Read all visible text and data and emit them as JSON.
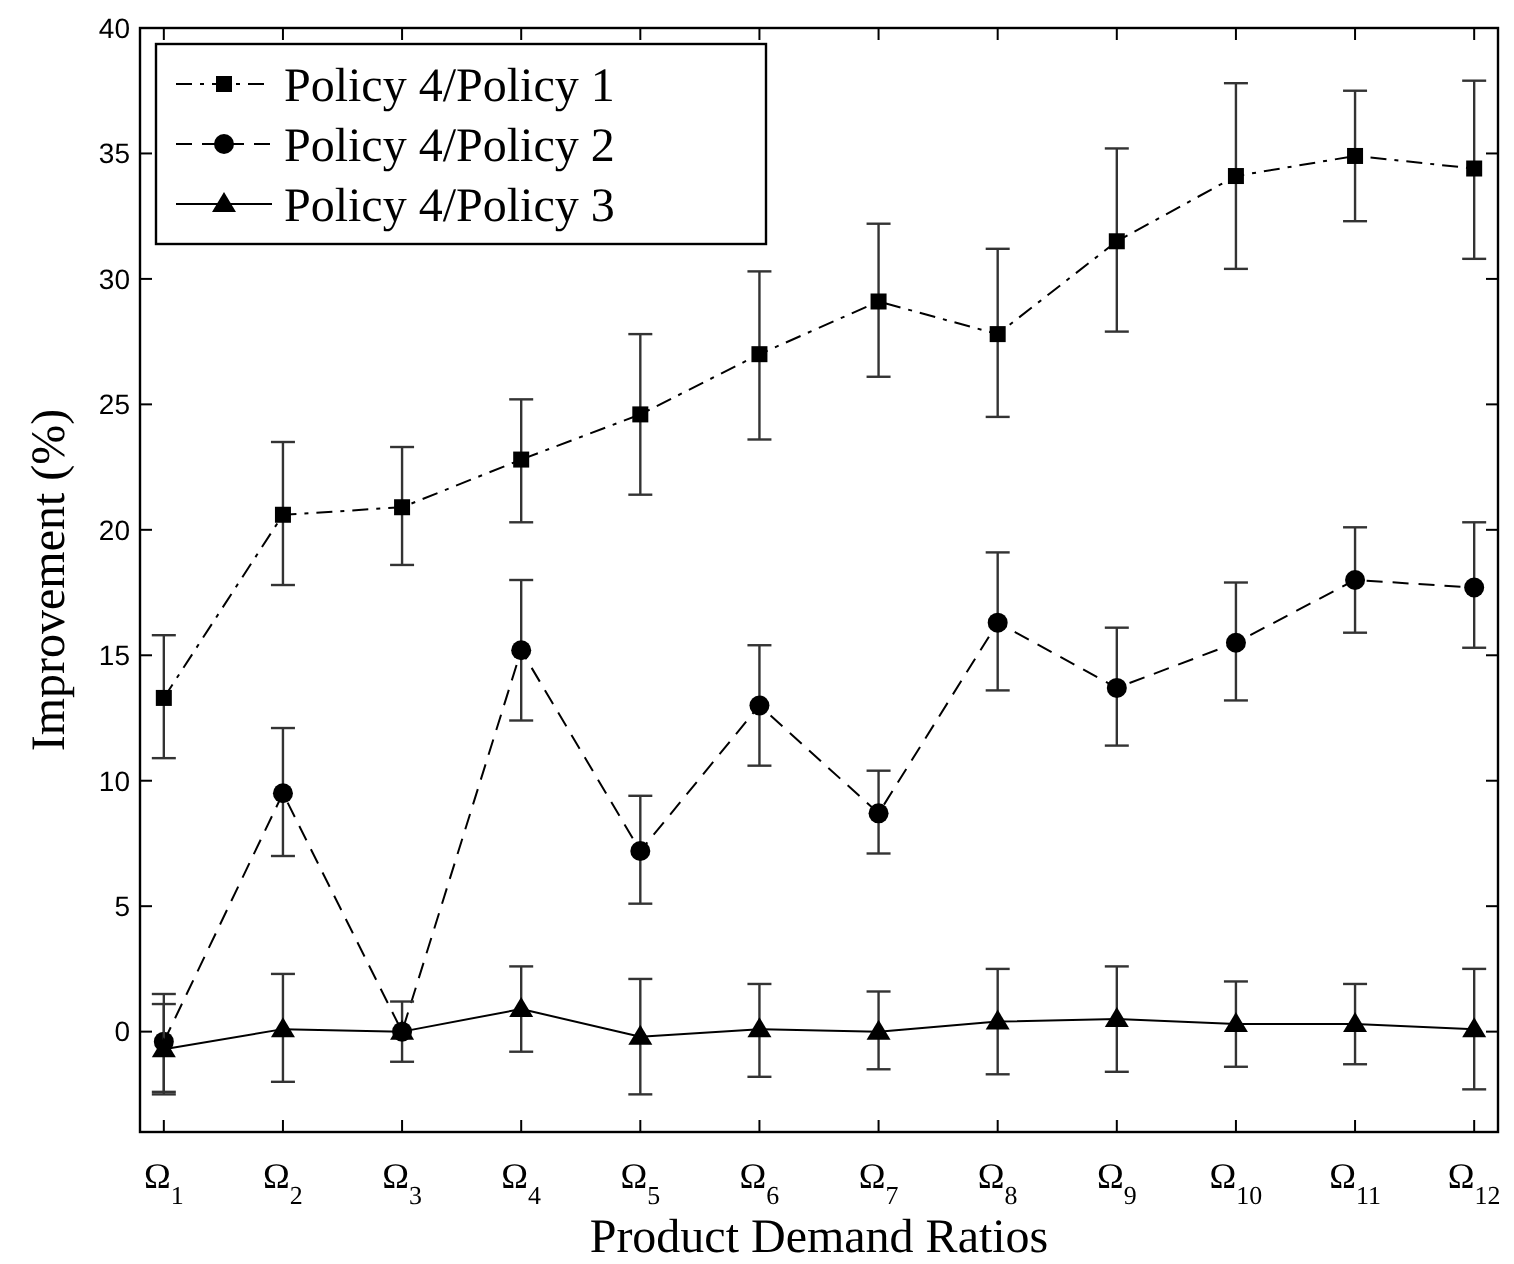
{
  "chart_data": {
    "type": "line",
    "xlabel": "Product Demand Ratios",
    "ylabel": "Improvement (%)",
    "categories": [
      "Ω$_{1}$",
      "Ω$_{2}$",
      "Ω$_{3}$",
      "Ω$_{4}$",
      "Ω$_{5}$",
      "Ω$_{6}$",
      "Ω$_{7}$",
      "Ω$_{8}$",
      "Ω$_{9}$",
      "Ω$_{10}$",
      "Ω$_{11}$",
      "Ω$_{12}$"
    ],
    "ylim": [
      -4,
      40
    ],
    "yticks": [
      0,
      5,
      10,
      15,
      20,
      25,
      30,
      35,
      40
    ],
    "grid": false,
    "legend": "top left",
    "series": [
      {
        "name": "Policy 4/Policy 1",
        "color": "#000000",
        "marker": "square",
        "line_style": "dashdot",
        "values": [
          13.3,
          20.6,
          20.9,
          22.8,
          24.6,
          27.0,
          29.1,
          27.8,
          31.5,
          34.1,
          34.9,
          34.4
        ],
        "errors": [
          [
            10.9,
            15.8
          ],
          [
            17.8,
            23.5
          ],
          [
            18.6,
            23.3
          ],
          [
            20.3,
            25.2
          ],
          [
            21.4,
            27.8
          ],
          [
            23.6,
            30.3
          ],
          [
            26.1,
            32.2
          ],
          [
            24.5,
            31.2
          ],
          [
            27.9,
            35.2
          ],
          [
            30.4,
            37.8
          ],
          [
            32.3,
            37.5
          ],
          [
            30.8,
            37.9
          ]
        ]
      },
      {
        "name": "Policy 4/Policy 2",
        "color": "#000000",
        "marker": "circle",
        "line_style": "dashed",
        "values": [
          -0.4,
          9.5,
          0.0,
          15.2,
          7.2,
          13.0,
          8.7,
          16.3,
          13.7,
          15.5,
          18.0,
          17.7
        ],
        "errors": [
          [
            -2.5,
            1.5
          ],
          [
            7.0,
            12.1
          ],
          [
            -1.2,
            1.2
          ],
          [
            12.4,
            18.0
          ],
          [
            5.1,
            9.4
          ],
          [
            10.6,
            15.4
          ],
          [
            7.1,
            10.4
          ],
          [
            13.6,
            19.1
          ],
          [
            11.4,
            16.1
          ],
          [
            13.2,
            17.9
          ],
          [
            15.9,
            20.1
          ],
          [
            15.3,
            20.3
          ]
        ]
      },
      {
        "name": "Policy 4/Policy 3",
        "color": "#000000",
        "marker": "triangle",
        "line_style": "solid",
        "values": [
          -0.7,
          0.1,
          0.0,
          0.9,
          -0.2,
          0.1,
          0.0,
          0.4,
          0.5,
          0.3,
          0.3,
          0.1
        ],
        "errors": [
          [
            -2.4,
            1.1
          ],
          [
            -2.0,
            2.3
          ],
          null,
          [
            -0.8,
            2.6
          ],
          [
            -2.5,
            2.1
          ],
          [
            -1.8,
            1.9
          ],
          [
            -1.5,
            1.6
          ],
          [
            -1.7,
            2.5
          ],
          [
            -1.6,
            2.6
          ],
          [
            -1.4,
            2.0
          ],
          [
            -1.3,
            1.9
          ],
          [
            -2.3,
            2.5
          ]
        ]
      }
    ]
  }
}
